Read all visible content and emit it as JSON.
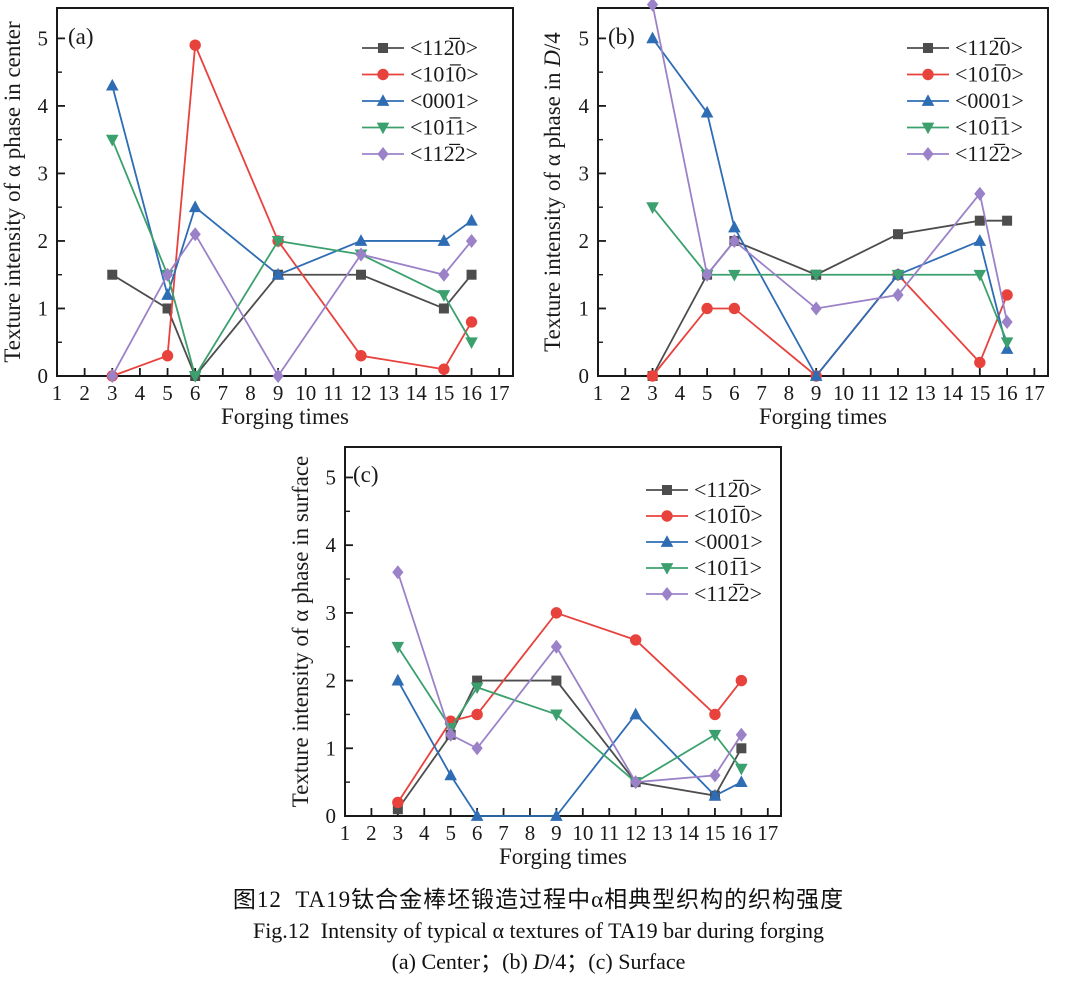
{
  "figure": {
    "captions": {
      "zh": "图12  TA19钛合金棒坯锻造过程中α相典型织构的织构强度",
      "en": "Fig.12  Intensity of typical α textures of TA19 bar during forging",
      "panels": "(a) Center；(b) D/4；(c) Surface"
    }
  },
  "chart_data": [
    {
      "type": "line",
      "panel_label": "(a)",
      "xlabel": "Forging times",
      "ylabel": "Texture intensity of α phase in center",
      "xlim": [
        1,
        17.5
      ],
      "ylim": [
        0,
        5.45
      ],
      "xticks": [
        1,
        2,
        3,
        4,
        5,
        6,
        7,
        8,
        9,
        10,
        11,
        12,
        13,
        14,
        15,
        16,
        17
      ],
      "yticks": [
        0,
        1,
        2,
        3,
        4,
        5
      ],
      "y_minor_step": 0.5,
      "grid": false,
      "legend_position": "top-right",
      "x": [
        3,
        5,
        6,
        9,
        12,
        15,
        16
      ],
      "series": [
        {
          "name": "<112̅0>",
          "marker": "square",
          "color": "#4d4d4d",
          "values": [
            1.5,
            1.0,
            0,
            1.5,
            1.5,
            1.0,
            1.5
          ]
        },
        {
          "name": "<101̅0>",
          "marker": "circle",
          "color": "#e8423d",
          "values": [
            0,
            0.3,
            4.9,
            2.0,
            0.3,
            0.1,
            0.8
          ]
        },
        {
          "name": "<0001>",
          "marker": "triangle-up",
          "color": "#2e6db4",
          "values": [
            4.3,
            1.2,
            2.5,
            1.5,
            2.0,
            2.0,
            2.3
          ]
        },
        {
          "name": "<101̅1>",
          "marker": "triangle-down",
          "color": "#3ca06e",
          "values": [
            3.5,
            1.5,
            0,
            2.0,
            1.8,
            1.2,
            0.5
          ]
        },
        {
          "name": "<112̅2>",
          "marker": "diamond",
          "color": "#9b82c8",
          "values": [
            0,
            1.5,
            2.1,
            0,
            1.8,
            1.5,
            2.0
          ]
        }
      ]
    },
    {
      "type": "line",
      "panel_label": "(b)",
      "xlabel": "Forging times",
      "ylabel": "Texture intensity of α phase in D/4",
      "xlim": [
        1,
        17.5
      ],
      "ylim": [
        0,
        5.45
      ],
      "xticks": [
        1,
        2,
        3,
        4,
        5,
        6,
        7,
        8,
        9,
        10,
        11,
        12,
        13,
        14,
        15,
        16,
        17
      ],
      "yticks": [
        0,
        1,
        2,
        3,
        4,
        5
      ],
      "y_minor_step": 0.5,
      "grid": false,
      "legend_position": "top-right",
      "x": [
        3,
        5,
        6,
        9,
        12,
        15,
        16
      ],
      "series": [
        {
          "name": "<112̅0>",
          "marker": "square",
          "color": "#4d4d4d",
          "values": [
            0,
            1.5,
            2.0,
            1.5,
            2.1,
            2.3,
            2.3
          ]
        },
        {
          "name": "<101̅0>",
          "marker": "circle",
          "color": "#e8423d",
          "values": [
            0,
            1.0,
            1.0,
            0,
            1.5,
            0.2,
            1.2
          ]
        },
        {
          "name": "<0001>",
          "marker": "triangle-up",
          "color": "#2e6db4",
          "values": [
            5.0,
            3.9,
            2.2,
            0,
            1.5,
            2.0,
            0.4
          ]
        },
        {
          "name": "<101̅1>",
          "marker": "triangle-down",
          "color": "#3ca06e",
          "values": [
            2.5,
            1.5,
            1.5,
            1.5,
            1.5,
            1.5,
            0.5
          ]
        },
        {
          "name": "<112̅2>",
          "marker": "diamond",
          "color": "#9b82c8",
          "values": [
            5.5,
            1.5,
            2.0,
            1.0,
            1.2,
            2.7,
            0.8
          ]
        }
      ]
    },
    {
      "type": "line",
      "panel_label": "(c)",
      "xlabel": "Forging times",
      "ylabel": "Texture intensity of α phase in surface",
      "xlim": [
        1,
        17.5
      ],
      "ylim": [
        0,
        5.45
      ],
      "xticks": [
        1,
        2,
        3,
        4,
        5,
        6,
        7,
        8,
        9,
        10,
        11,
        12,
        13,
        14,
        15,
        16,
        17
      ],
      "yticks": [
        0,
        1,
        2,
        3,
        4,
        5
      ],
      "y_minor_step": 0.5,
      "grid": false,
      "legend_position": "top-right",
      "x": [
        3,
        5,
        6,
        9,
        12,
        15,
        16
      ],
      "series": [
        {
          "name": "<112̅0>",
          "marker": "square",
          "color": "#4d4d4d",
          "values": [
            0.1,
            1.2,
            2.0,
            2.0,
            0.5,
            0.3,
            1.0
          ]
        },
        {
          "name": "<101̅0>",
          "marker": "circle",
          "color": "#e8423d",
          "values": [
            0.2,
            1.4,
            1.5,
            3.0,
            2.6,
            1.5,
            2.0
          ]
        },
        {
          "name": "<0001>",
          "marker": "triangle-up",
          "color": "#2e6db4",
          "values": [
            2.0,
            0.6,
            0,
            0,
            1.5,
            0.3,
            0.5
          ]
        },
        {
          "name": "<101̅1>",
          "marker": "triangle-down",
          "color": "#3ca06e",
          "values": [
            2.5,
            1.3,
            1.9,
            1.5,
            0.5,
            1.2,
            0.7
          ]
        },
        {
          "name": "<112̅2>",
          "marker": "diamond",
          "color": "#9b82c8",
          "values": [
            3.6,
            1.2,
            1.0,
            2.5,
            0.5,
            0.6,
            1.2
          ]
        }
      ]
    }
  ]
}
